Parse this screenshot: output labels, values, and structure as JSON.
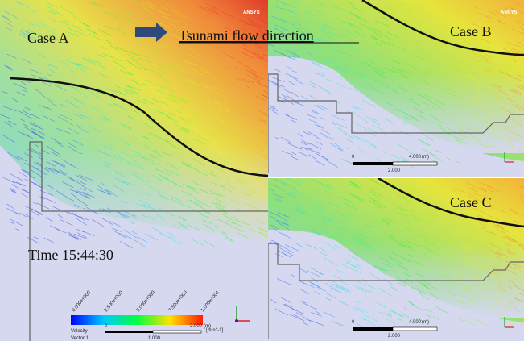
{
  "annotation": {
    "arrow_text": "Tsunami flow direction"
  },
  "panels": {
    "case_a": {
      "label": "Case A",
      "time": "Time 15:44:30",
      "logo": "ANSYS",
      "legend": {
        "ticks": [
          "0.000e+000",
          "2.500e+000",
          "5.000e+000",
          "7.500e+000",
          "1.000e+001"
        ],
        "title": "Velocity",
        "subtitle": "Vector 1",
        "unit": "[m s^-1]"
      },
      "scale": {
        "start": "0",
        "end": "2.000",
        "unit": "(m)",
        "mid": "1.000"
      }
    },
    "case_b": {
      "label": "Case B",
      "logo": "ANSYS",
      "scale": {
        "start": "0",
        "end": "4.000",
        "unit": "(m)",
        "mid": "2.000"
      }
    },
    "case_c": {
      "label": "Case C",
      "scale": {
        "start": "0",
        "end": "4.000",
        "unit": "(m)",
        "mid": "2.000"
      }
    }
  }
}
